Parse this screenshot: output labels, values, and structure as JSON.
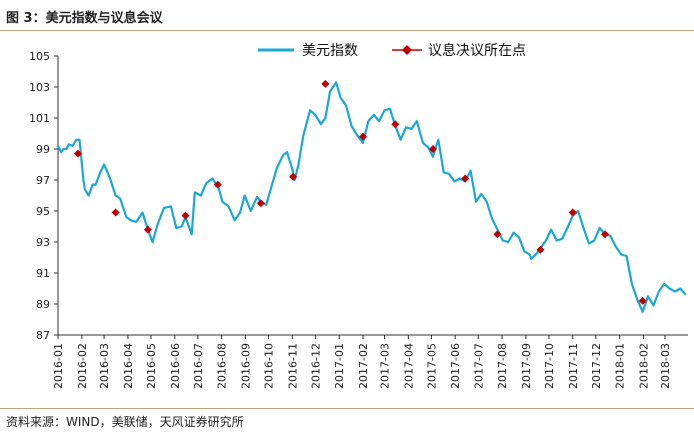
{
  "figure": {
    "title": "图 3：美元指数与议息会议",
    "source": "资料来源：WIND，美联储，天风证券研究所"
  },
  "chart_data": {
    "type": "line",
    "legend": {
      "placement": "top-right",
      "entries": [
        {
          "label": "美元指数",
          "color": "#1aa7d4",
          "kind": "line"
        },
        {
          "label": "议息决议所在点",
          "color": "#c00000",
          "kind": "marker"
        }
      ]
    },
    "ylim": [
      87,
      105
    ],
    "yticks": [
      "87",
      "89",
      "91",
      "93",
      "95",
      "97",
      "99",
      "101",
      "103",
      "105"
    ],
    "xlim": [
      "2016-01-01",
      "2018-03-31"
    ],
    "xticks": [
      "2016-01",
      "2016-02",
      "2016-03",
      "2016-04",
      "2016-05",
      "2016-06",
      "2016-07",
      "2016-08",
      "2016-09",
      "2016-10",
      "2016-11",
      "2016-12",
      "2017-01",
      "2017-02",
      "2017-03",
      "2017-04",
      "2017-05",
      "2017-06",
      "2017-07",
      "2017-08",
      "2017-09",
      "2017-10",
      "2017-11",
      "2017-12",
      "2018-01",
      "2018-02",
      "2018-03"
    ],
    "grid": false,
    "series": [
      {
        "name": "美元指数",
        "color": "#1aa7d4",
        "x": [
          "2016-01-01",
          "2016-01-05",
          "2016-01-08",
          "2016-01-12",
          "2016-01-15",
          "2016-01-20",
          "2016-01-25",
          "2016-01-29",
          "2016-02-03",
          "2016-02-05",
          "2016-02-10",
          "2016-02-15",
          "2016-02-19",
          "2016-02-25",
          "2016-03-01",
          "2016-03-08",
          "2016-03-16",
          "2016-03-22",
          "2016-03-30",
          "2016-04-05",
          "2016-04-12",
          "2016-04-20",
          "2016-04-27",
          "2016-05-03",
          "2016-05-10",
          "2016-05-18",
          "2016-05-27",
          "2016-06-03",
          "2016-06-10",
          "2016-06-15",
          "2016-06-23",
          "2016-06-27",
          "2016-07-05",
          "2016-07-12",
          "2016-07-20",
          "2016-07-28",
          "2016-08-02",
          "2016-08-10",
          "2016-08-18",
          "2016-08-25",
          "2016-08-31",
          "2016-09-08",
          "2016-09-16",
          "2016-09-21",
          "2016-09-28",
          "2016-10-05",
          "2016-10-12",
          "2016-10-20",
          "2016-10-25",
          "2016-11-01",
          "2016-11-04",
          "2016-11-09",
          "2016-11-15",
          "2016-11-24",
          "2016-12-01",
          "2016-12-08",
          "2016-12-14",
          "2016-12-20",
          "2016-12-28",
          "2017-01-03",
          "2017-01-10",
          "2017-01-17",
          "2017-01-24",
          "2017-02-01",
          "2017-02-08",
          "2017-02-15",
          "2017-02-22",
          "2017-03-01",
          "2017-03-08",
          "2017-03-15",
          "2017-03-22",
          "2017-03-29",
          "2017-04-05",
          "2017-04-12",
          "2017-04-20",
          "2017-04-27",
          "2017-05-03",
          "2017-05-10",
          "2017-05-17",
          "2017-05-24",
          "2017-05-31",
          "2017-06-07",
          "2017-06-14",
          "2017-06-21",
          "2017-06-28",
          "2017-07-05",
          "2017-07-12",
          "2017-07-19",
          "2017-07-26",
          "2017-08-02",
          "2017-08-09",
          "2017-08-16",
          "2017-08-23",
          "2017-08-30",
          "2017-09-06",
          "2017-09-08",
          "2017-09-14",
          "2017-09-20",
          "2017-09-27",
          "2017-10-04",
          "2017-10-11",
          "2017-10-18",
          "2017-10-25",
          "2017-11-01",
          "2017-11-08",
          "2017-11-15",
          "2017-11-22",
          "2017-11-29",
          "2017-12-06",
          "2017-12-13",
          "2017-12-20",
          "2017-12-27",
          "2018-01-03",
          "2018-01-10",
          "2018-01-17",
          "2018-01-24",
          "2018-01-31",
          "2018-02-07",
          "2018-02-14",
          "2018-02-21",
          "2018-02-28",
          "2018-03-07",
          "2018-03-14",
          "2018-03-21",
          "2018-03-28"
        ],
        "values": [
          99.2,
          98.8,
          99.0,
          99.0,
          99.3,
          99.2,
          99.6,
          99.6,
          97.0,
          96.4,
          96.0,
          96.7,
          96.7,
          97.5,
          98.0,
          97.2,
          96.0,
          95.8,
          94.6,
          94.4,
          94.3,
          94.9,
          93.8,
          93.0,
          94.2,
          95.2,
          95.3,
          93.9,
          94.0,
          94.6,
          93.5,
          96.2,
          96.0,
          96.8,
          97.1,
          96.5,
          95.6,
          95.3,
          94.4,
          94.9,
          96.0,
          95.0,
          95.9,
          95.6,
          95.4,
          96.6,
          97.8,
          98.6,
          98.8,
          97.7,
          97.0,
          98.0,
          99.8,
          101.5,
          101.2,
          100.6,
          101.0,
          102.7,
          103.3,
          102.3,
          101.8,
          100.5,
          99.9,
          99.4,
          100.8,
          101.2,
          100.8,
          101.5,
          101.6,
          100.5,
          99.6,
          100.4,
          100.3,
          100.8,
          99.4,
          99.1,
          98.5,
          99.6,
          97.5,
          97.4,
          96.9,
          97.1,
          96.9,
          97.6,
          95.6,
          96.1,
          95.6,
          94.5,
          93.8,
          93.1,
          93.0,
          93.6,
          93.3,
          92.4,
          92.2,
          91.9,
          92.2,
          92.6,
          93.1,
          93.8,
          93.1,
          93.2,
          93.9,
          94.7,
          95.0,
          93.9,
          92.9,
          93.1,
          93.9,
          93.5,
          93.4,
          92.7,
          92.2,
          92.1,
          90.3,
          89.3,
          88.5,
          89.5,
          88.9,
          89.8,
          90.3,
          90.0,
          89.8,
          90.0,
          89.6
        ]
      },
      {
        "name": "议息决议所在点",
        "color": "#c00000",
        "x": [
          "2016-01-27",
          "2016-03-16",
          "2016-04-27",
          "2016-06-15",
          "2016-07-27",
          "2016-09-21",
          "2016-11-02",
          "2016-12-14",
          "2017-02-01",
          "2017-03-15",
          "2017-05-03",
          "2017-06-14",
          "2017-07-26",
          "2017-09-20",
          "2017-11-01",
          "2017-12-13",
          "2018-01-31"
        ],
        "values": [
          98.7,
          94.9,
          93.8,
          94.7,
          96.7,
          95.5,
          97.2,
          103.2,
          99.8,
          100.6,
          99.0,
          97.1,
          93.5,
          92.5,
          94.9,
          93.5,
          89.2
        ]
      }
    ]
  }
}
